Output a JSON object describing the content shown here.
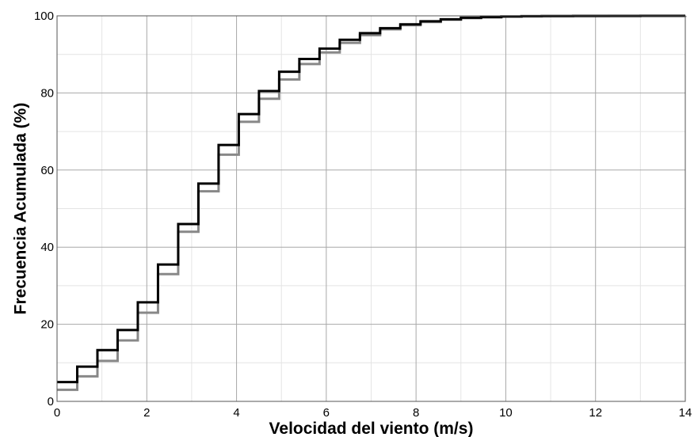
{
  "chart_data": {
    "type": "line",
    "step": true,
    "title": "",
    "xlabel": "Velocidad del viento (m/s)",
    "ylabel": "Frecuencia Acumulada (%)",
    "xlim": [
      0,
      14
    ],
    "ylim": [
      0,
      100
    ],
    "xticks": [
      0,
      2,
      4,
      6,
      8,
      10,
      12,
      14
    ],
    "yticks": [
      0,
      20,
      40,
      60,
      80,
      100
    ],
    "grid": true,
    "minor_grid": true,
    "legend": "none",
    "series": [
      {
        "color": "#000000",
        "x": [
          0,
          0.45,
          0.9,
          1.35,
          1.8,
          2.25,
          2.7,
          3.15,
          3.6,
          4.05,
          4.5,
          4.95,
          5.4,
          5.85,
          6.3,
          6.75,
          7.2,
          7.65,
          8.1,
          8.55,
          9.0,
          9.45,
          9.9,
          10.35,
          10.8,
          11.5,
          12.3,
          13.0,
          14.0
        ],
        "y": [
          5,
          9,
          13.3,
          18.5,
          25.7,
          35.5,
          46,
          56.5,
          66.5,
          74.5,
          80.5,
          85.5,
          88.8,
          91.5,
          93.8,
          95.5,
          96.8,
          97.8,
          98.6,
          99.1,
          99.5,
          99.7,
          99.85,
          99.92,
          99.95,
          99.97,
          99.98,
          100,
          100
        ]
      },
      {
        "color": "#888888",
        "x": [
          0,
          0.45,
          0.9,
          1.35,
          1.8,
          2.25,
          2.7,
          3.15,
          3.6,
          4.05,
          4.5,
          4.95,
          5.4,
          5.85,
          6.3,
          6.75,
          7.2,
          7.65,
          8.1,
          8.55,
          9.0,
          9.45,
          9.9,
          10.35,
          10.8,
          11.5,
          12.3,
          13.0,
          14.0
        ],
        "y": [
          3,
          6.5,
          10.5,
          15.8,
          23,
          33,
          44,
          54.5,
          64,
          72.5,
          78.5,
          83.5,
          87.5,
          90.5,
          93,
          95,
          96.5,
          97.6,
          98.4,
          99,
          99.4,
          99.6,
          99.8,
          99.88,
          99.93,
          99.96,
          99.98,
          99.99,
          100
        ]
      }
    ]
  }
}
